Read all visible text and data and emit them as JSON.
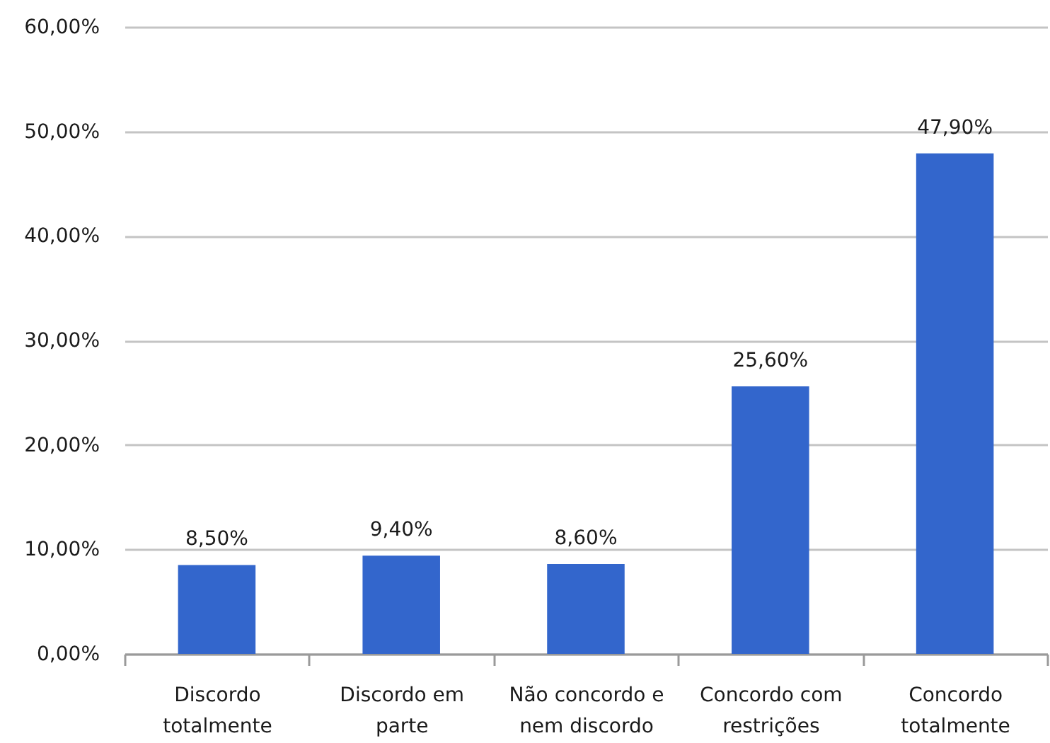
{
  "chart_data": {
    "type": "bar",
    "categories": [
      "Discordo totalmente",
      "Discordo em parte",
      "Não concordo e nem discordo",
      "Concordo com restrições",
      "Concordo totalmente"
    ],
    "values": [
      8.5,
      9.4,
      8.6,
      25.6,
      47.9
    ],
    "value_labels": [
      "8,50%",
      "9,40%",
      "8,60%",
      "25,60%",
      "47,90%"
    ],
    "color": "#3366cc",
    "ylim": [
      0,
      60
    ],
    "yticks": [
      {
        "value": 0,
        "label": "0,00%"
      },
      {
        "value": 10,
        "label": "10,00%"
      },
      {
        "value": 20,
        "label": "20,00%"
      },
      {
        "value": 30,
        "label": "30,00%"
      },
      {
        "value": 40,
        "label": "40,00%"
      },
      {
        "value": 50,
        "label": "50,00%"
      },
      {
        "value": 60,
        "label": "60,00%"
      }
    ],
    "grid": "y"
  }
}
